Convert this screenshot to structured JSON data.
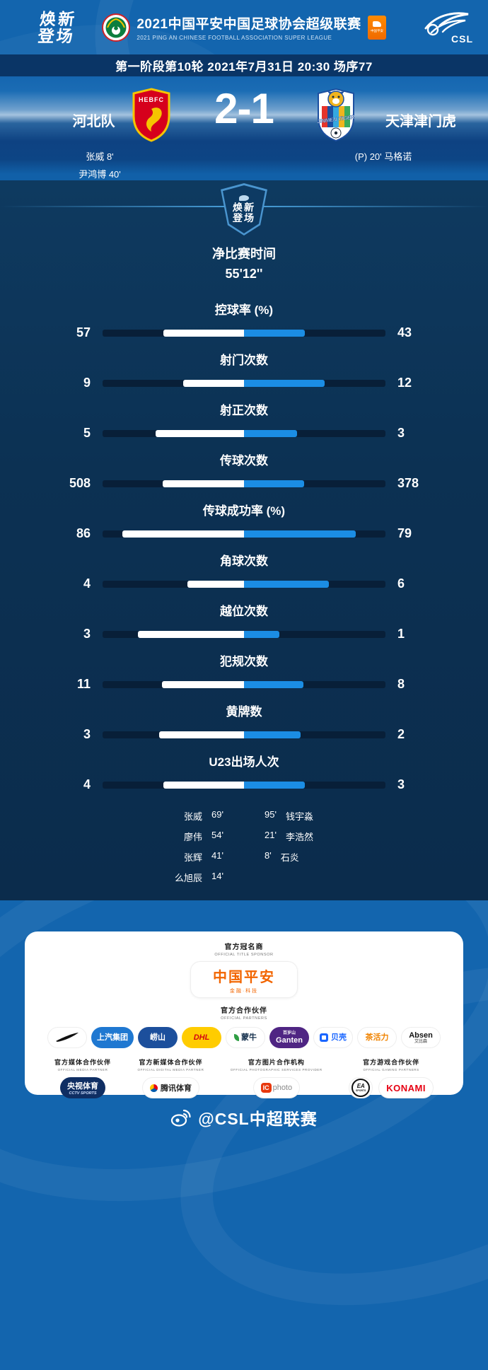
{
  "header": {
    "brand_l1": "焕新",
    "brand_l2": "登场",
    "league_title": "2021中国平安中国足球协会超级联赛",
    "league_subtitle": "2021 PING AN CHINESE FOOTBALL ASSOCIATION SUPER LEAGUE",
    "csl_text": "CSL",
    "mini_badge": "中国平安"
  },
  "infobar": {
    "match_info": "第一阶段第10轮  2021年7月31日 20:30 场序77"
  },
  "scoreboard": {
    "home": {
      "name": "河北队",
      "badge_text": "HEBFC",
      "score": "2",
      "scorers": [
        "张威  8'",
        "尹鸿博  40'"
      ]
    },
    "away": {
      "name": "天津津门虎",
      "badge_text": "JINMEN TIGER",
      "score": "1",
      "scorers": [
        "(P)  20'  马格诺"
      ]
    },
    "separator": "-"
  },
  "stats": {
    "badge_l1": "焕新",
    "badge_l2": "登场",
    "net_time_label": "净比赛时间",
    "net_time_value": "55'12''",
    "rows": [
      {
        "label": "控球率 (%)",
        "home": 57,
        "away": 43,
        "percent": true
      },
      {
        "label": "射门次数",
        "home": 9,
        "away": 12
      },
      {
        "label": "射正次数",
        "home": 5,
        "away": 3
      },
      {
        "label": "传球次数",
        "home": 508,
        "away": 378
      },
      {
        "label": "传球成功率 (%)",
        "home": 86,
        "away": 79,
        "percent": true
      },
      {
        "label": "角球次数",
        "home": 4,
        "away": 6
      },
      {
        "label": "越位次数",
        "home": 3,
        "away": 1
      },
      {
        "label": "犯规次数",
        "home": 11,
        "away": 8
      },
      {
        "label": "黄牌数",
        "home": 3,
        "away": 2
      },
      {
        "label": "U23出场人次",
        "home": 4,
        "away": 3
      }
    ],
    "u23": {
      "home": [
        {
          "name": "张威",
          "minute": "69'"
        },
        {
          "name": "廖伟",
          "minute": "54'"
        },
        {
          "name": "张辉",
          "minute": "41'"
        },
        {
          "name": "么旭辰",
          "minute": "14'"
        }
      ],
      "away": [
        {
          "minute": "95'",
          "name": "钱宇淼"
        },
        {
          "minute": "21'",
          "name": "李浩然"
        },
        {
          "minute": "8'",
          "name": "石炎"
        }
      ]
    }
  },
  "chart_data": {
    "type": "bar",
    "title": "河北队 2-1 天津津门虎",
    "subtitle": "净比赛时间 55'12''",
    "categories": [
      "控球率 (%)",
      "射门次数",
      "射正次数",
      "传球次数",
      "传球成功率 (%)",
      "角球次数",
      "越位次数",
      "犯规次数",
      "黄牌数",
      "U23出场人次"
    ],
    "series": [
      {
        "name": "河北队",
        "values": [
          57,
          9,
          5,
          508,
          86,
          4,
          3,
          11,
          3,
          4
        ]
      },
      {
        "name": "天津津门虎",
        "values": [
          43,
          12,
          3,
          378,
          79,
          6,
          1,
          8,
          2,
          3
        ]
      }
    ],
    "legend_position": "none",
    "orientation": "horizontal-diverging-from-center"
  },
  "sponsors": {
    "title_label": "官方冠名商",
    "title_label_en": "OFFICIAL TITLE SPONSOR",
    "title_sponsor": {
      "name": "中国平安",
      "tagline": "金融·科技"
    },
    "partners_label": "官方合作伙伴",
    "partners_label_en": "OFFICIAL PARTNERS",
    "partners": [
      {
        "name": "Nike"
      },
      {
        "name": "上汽集团"
      },
      {
        "name": "崂山"
      },
      {
        "name": "DHL"
      },
      {
        "name": "蒙牛"
      },
      {
        "name": "百岁山",
        "sub": "Ganten"
      },
      {
        "name": "贝壳"
      },
      {
        "name": "茶活力"
      },
      {
        "name": "Absen",
        "sub": "艾比森"
      }
    ],
    "categories": [
      {
        "label": "官方媒体合作伙伴",
        "label_en": "OFFICIAL MEDIA PARTNER",
        "logos": [
          {
            "name": "央视体育",
            "sub": "CCTV SPORTS"
          }
        ]
      },
      {
        "label": "官方新媒体合作伙伴",
        "label_en": "OFFICIAL DIGITAL MEDIA PARTNER",
        "logos": [
          {
            "name": "腾讯体育"
          }
        ]
      },
      {
        "label": "官方图片合作机构",
        "label_en": "OFFICIAL PHOTOGRAPHIC SERVICES PROVIDER",
        "logos": [
          {
            "ic": "IC",
            "rest": "photo",
            "name": "ICphoto"
          }
        ]
      },
      {
        "label": "官方游戏合作伙伴",
        "label_en": "OFFICIAL GAMING PARTNERS",
        "logos": [
          {
            "name": "EA",
            "sub": "SPORTS"
          },
          {
            "name": "KONAMI"
          }
        ]
      }
    ]
  },
  "footer": {
    "weibo_handle": "@CSL中超联赛"
  },
  "colors": {
    "background": "#1365ae",
    "panel": "#0c3153",
    "bar_track": "#081f38",
    "home_fill": "#ffffff",
    "away_fill": "#1b8de4",
    "title_sponsor_orange": "#f26500"
  }
}
